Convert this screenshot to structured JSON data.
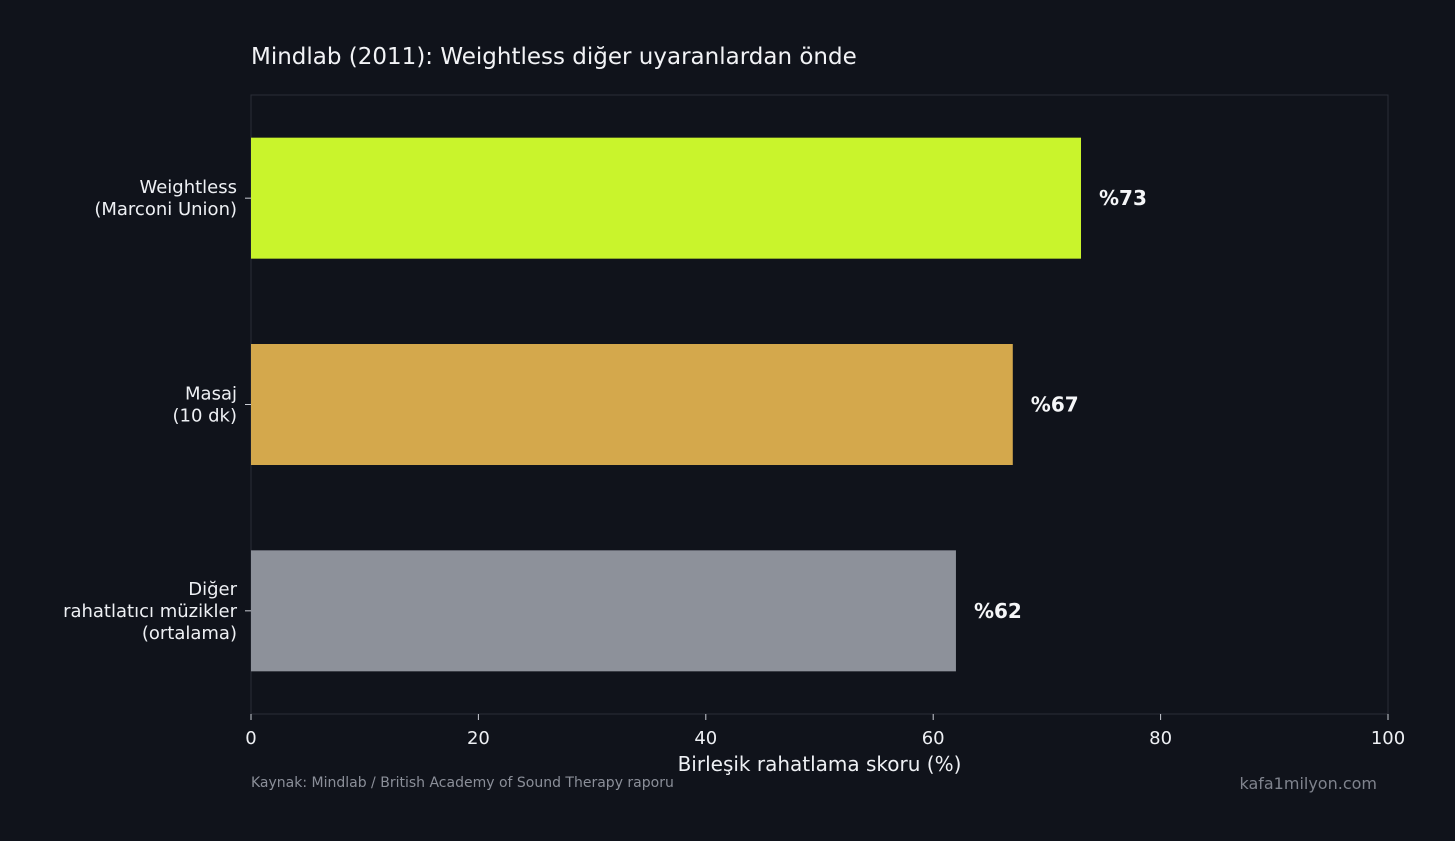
{
  "chart_data": {
    "type": "bar",
    "orientation": "horizontal",
    "title": "Mindlab (2011): Weightless diğer uyaranlardan önde",
    "xlabel": "Birleşik rahatlama skoru (%)",
    "ylabel": "",
    "xlim": [
      0,
      100
    ],
    "xticks": [
      0,
      20,
      40,
      60,
      80,
      100
    ],
    "categories": [
      [
        "Weightless",
        "(Marconi Union)"
      ],
      [
        "Masaj",
        "(10 dk)"
      ],
      [
        "Diğer",
        "rahatlatıcı müzikler",
        "(ortalama)"
      ]
    ],
    "values": [
      73,
      67,
      62
    ],
    "value_labels": [
      "%73",
      "%67",
      "%62"
    ],
    "colors": [
      "#c9f42c",
      "#d4a84c",
      "#8d919a"
    ],
    "grid": false
  },
  "footer": {
    "source": "Kaynak: Mindlab / British Academy of Sound Therapy raporu",
    "site": "kafa1milyon.com"
  }
}
